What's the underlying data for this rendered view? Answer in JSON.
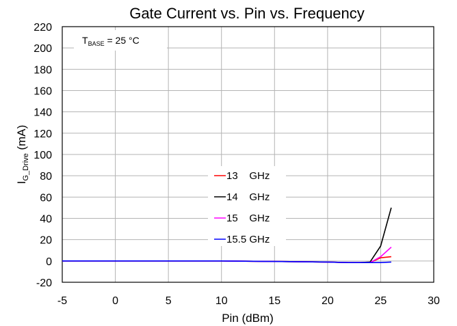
{
  "chart_data": {
    "type": "line",
    "title": "Gate Current vs. Pin vs. Frequency",
    "xlabel": "Pin (dBm)",
    "ylabel": {
      "main": "I",
      "sub": "G_Drive",
      "suffix": " (mA)"
    },
    "xlim": [
      -5,
      30
    ],
    "ylim": [
      -20,
      220
    ],
    "xticks": [
      -5,
      0,
      5,
      10,
      15,
      20,
      25,
      30
    ],
    "yticks": [
      -20,
      0,
      20,
      40,
      60,
      80,
      100,
      120,
      140,
      160,
      180,
      200,
      220
    ],
    "grid": true,
    "annotation": {
      "main": "T",
      "sub": "BASE",
      "suffix": " = 25 °C"
    },
    "legend_position": "center",
    "series": [
      {
        "name": "13 GHz",
        "legend_text": "13    GHz",
        "color": "#ff0000",
        "x": [
          -5,
          0,
          5,
          10,
          15,
          20,
          22,
          23,
          24,
          25,
          26
        ],
        "y": [
          0,
          0,
          0,
          0,
          -0.5,
          -1,
          -1.5,
          -1.5,
          -1.5,
          3,
          4
        ]
      },
      {
        "name": "14 GHz",
        "legend_text": "14    GHz",
        "color": "#000000",
        "x": [
          -5,
          0,
          5,
          10,
          15,
          20,
          22,
          23,
          24,
          25,
          26
        ],
        "y": [
          0,
          0,
          0,
          0,
          -0.5,
          -1,
          -1.5,
          -1.5,
          -1,
          14,
          50
        ]
      },
      {
        "name": "15 GHz",
        "legend_text": "15    GHz",
        "color": "#ff00ff",
        "x": [
          -5,
          0,
          5,
          10,
          15,
          20,
          22,
          23,
          24,
          25,
          26
        ],
        "y": [
          0,
          0,
          0,
          0,
          -0.5,
          -1,
          -1.5,
          -1.5,
          -1.5,
          4,
          13
        ]
      },
      {
        "name": "15.5 GHz",
        "legend_text": "15.5 GHz",
        "color": "#0000ff",
        "x": [
          -5,
          0,
          5,
          10,
          15,
          20,
          22,
          23,
          24,
          25,
          26
        ],
        "y": [
          0,
          0,
          0,
          0,
          -0.5,
          -1,
          -1.5,
          -1.5,
          -1.5,
          -1.5,
          -1
        ]
      }
    ]
  }
}
